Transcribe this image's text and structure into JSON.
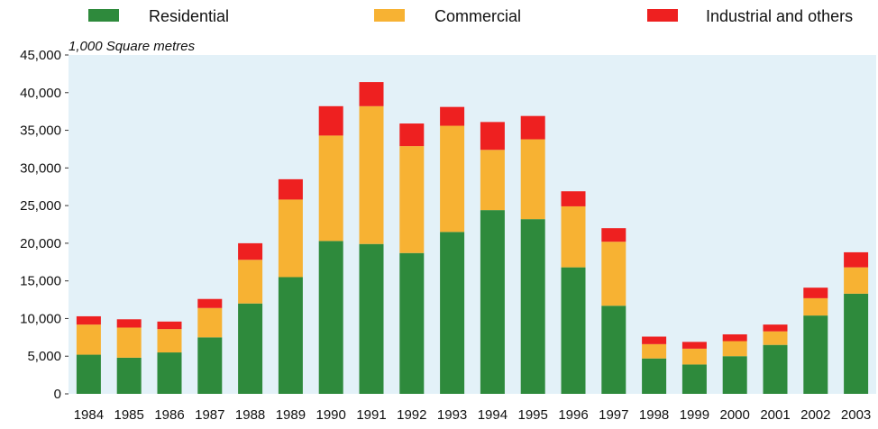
{
  "chart_data": {
    "type": "bar",
    "stacked": true,
    "title": "",
    "unit_label": "1,000 Square metres",
    "xlabel": "",
    "ylabel": "",
    "ylim": [
      0,
      45000
    ],
    "yticks": [
      "0",
      "5,000",
      "10,000",
      "15,000",
      "20,000",
      "25,000",
      "30,000",
      "35,000",
      "40,000",
      "45,000"
    ],
    "grid": false,
    "legend_position": "top",
    "background_color": "#e3f1f8",
    "categories": [
      "1984",
      "1985",
      "1986",
      "1987",
      "1988",
      "1989",
      "1990",
      "1991",
      "1992",
      "1993",
      "1994",
      "1995",
      "1996",
      "1997",
      "1998",
      "1999",
      "2000",
      "2001",
      "2002",
      "2003"
    ],
    "series": [
      {
        "name": "Residential",
        "color": "#2e8a3c",
        "values": [
          5200,
          4800,
          5500,
          7500,
          12000,
          15500,
          20300,
          19900,
          18700,
          21500,
          24400,
          23200,
          16800,
          11700,
          4700,
          3900,
          5000,
          6500,
          10400,
          13300
        ]
      },
      {
        "name": "Commercial",
        "color": "#f7b233",
        "values": [
          4000,
          4000,
          3100,
          3900,
          5800,
          10300,
          14000,
          18300,
          14200,
          14100,
          8000,
          10600,
          8100,
          8500,
          1900,
          2100,
          2000,
          1800,
          2300,
          3500
        ]
      },
      {
        "name": "Industrial and others",
        "color": "#ee2020",
        "values": [
          1100,
          1100,
          1000,
          1200,
          2200,
          2700,
          3900,
          3200,
          3000,
          2500,
          3700,
          3100,
          2000,
          1800,
          1000,
          900,
          900,
          900,
          1400,
          2000
        ]
      }
    ]
  }
}
